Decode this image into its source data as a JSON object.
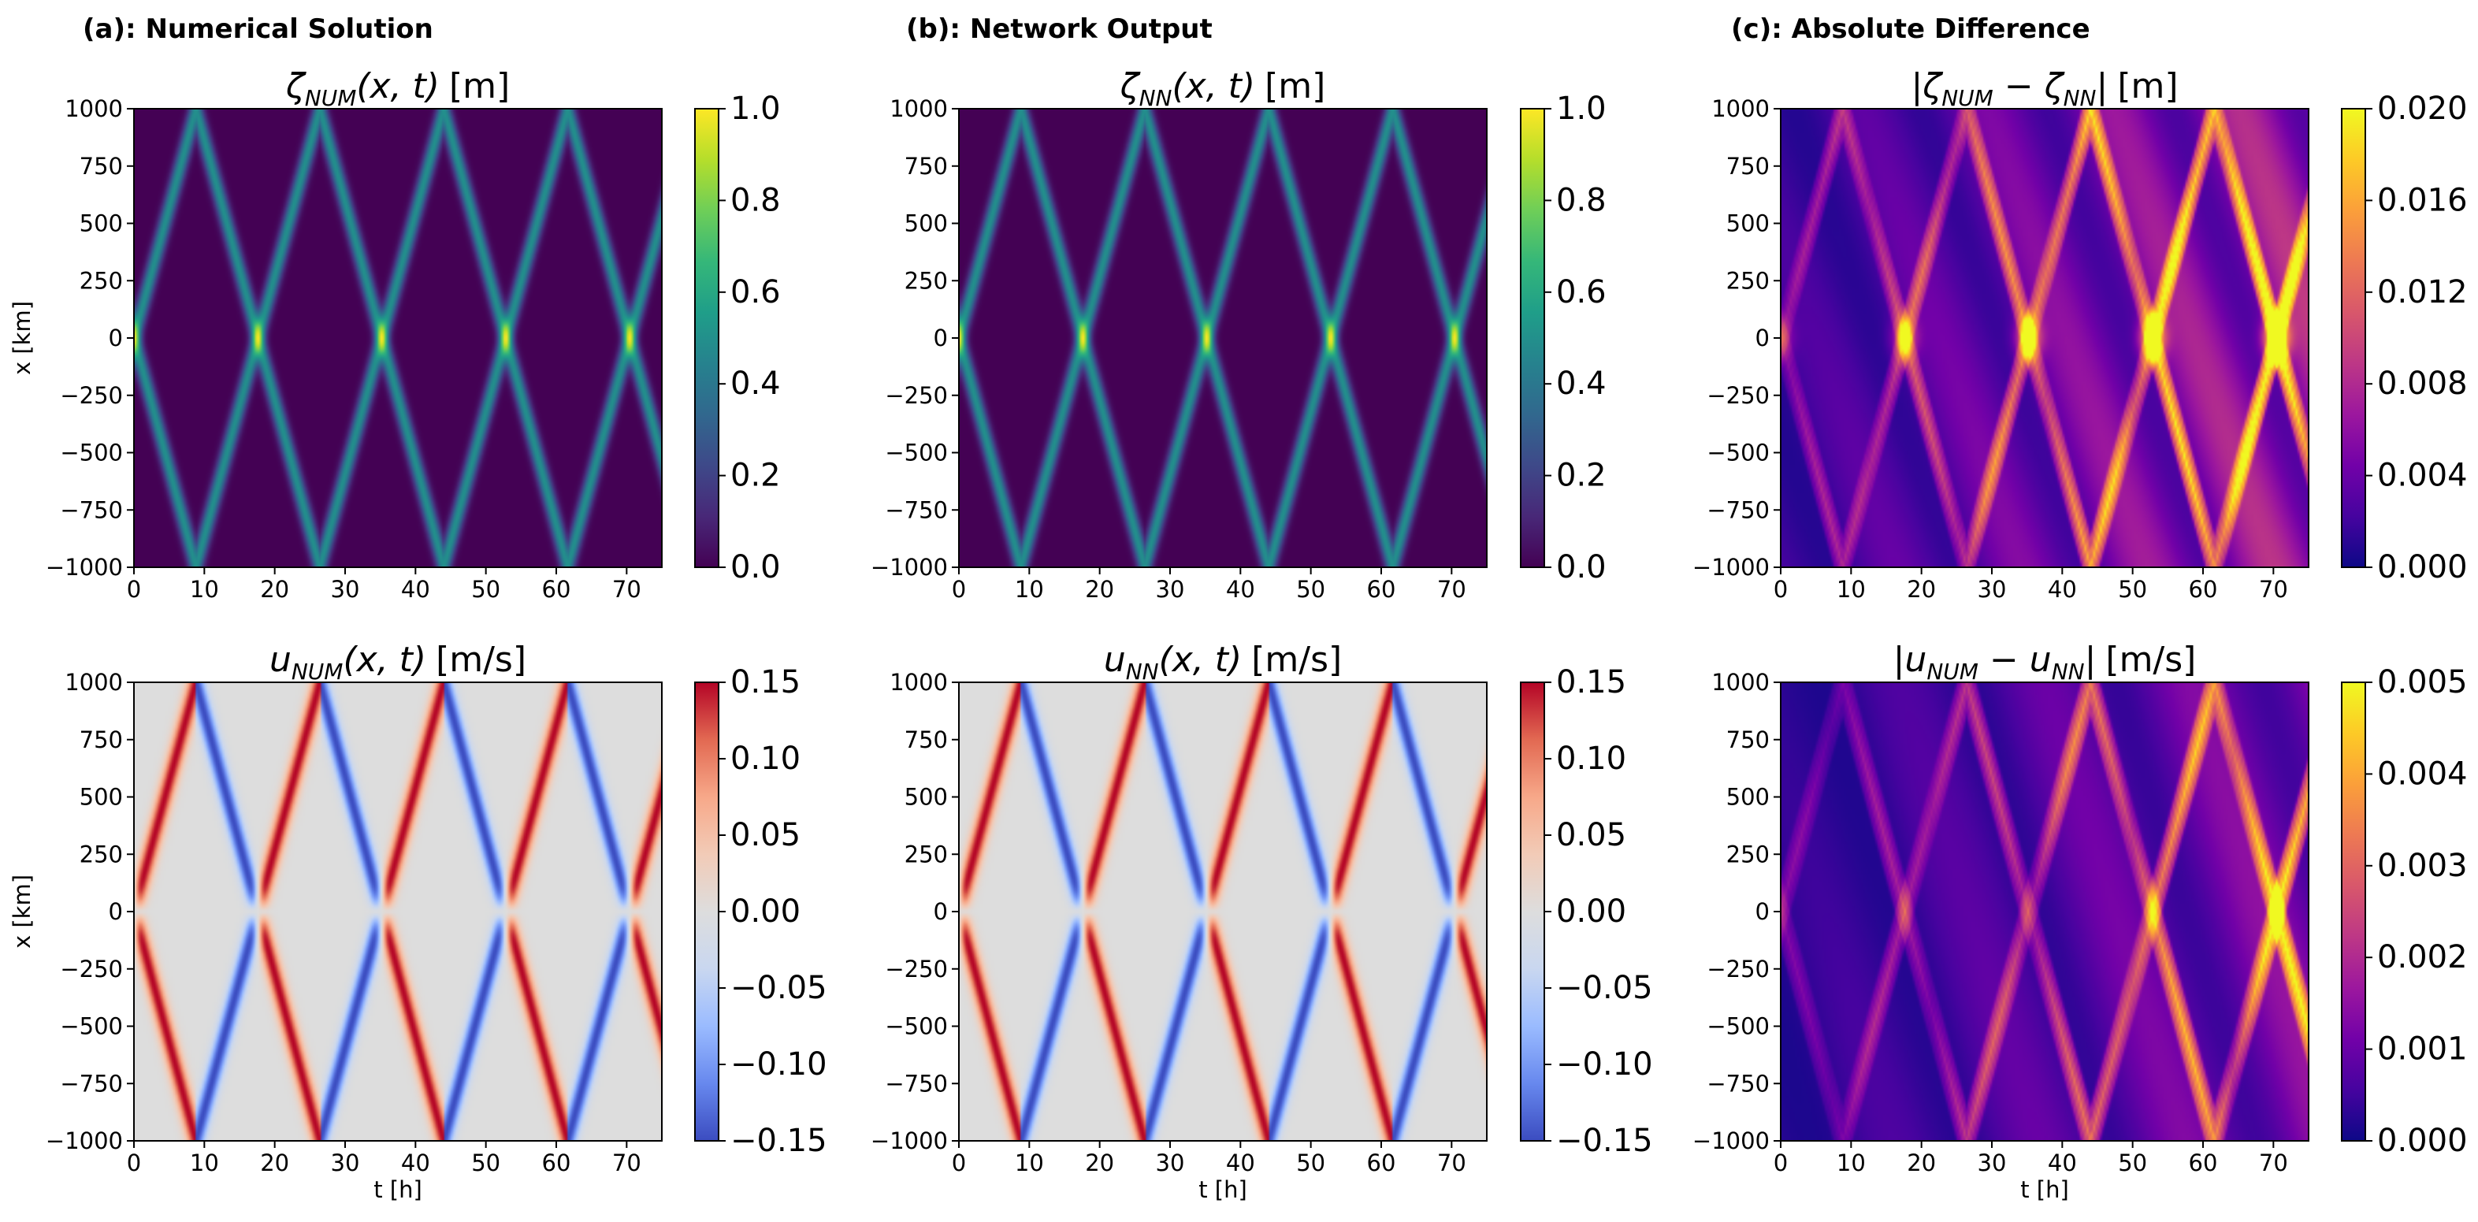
{
  "figure": {
    "column_titles": [
      "(a): Numerical Solution",
      "(b): Network Output",
      "(c): Absolute Difference"
    ]
  },
  "colors": {
    "viridis": [
      "#440154",
      "#482878",
      "#3e4989",
      "#31688e",
      "#26828e",
      "#1f9e89",
      "#35b779",
      "#6ece58",
      "#b5de2b",
      "#fde725"
    ],
    "plasma": [
      "#0d0887",
      "#46039f",
      "#7201a8",
      "#9c179e",
      "#bd3786",
      "#d8576b",
      "#ed7953",
      "#fb9f3a",
      "#fdca26",
      "#f0f921"
    ],
    "coolwarm": [
      "#3b4cc0",
      "#6788ee",
      "#9abbff",
      "#c9d7f0",
      "#dddddd",
      "#f2cbb7",
      "#f7a889",
      "#e26952",
      "#b40426"
    ]
  },
  "chart_data": [
    {
      "type": "heatmap",
      "panel": "a-top",
      "field": "zeta",
      "source": "numerical",
      "title_main": "ζ",
      "title_sub": "NUM",
      "title_args": "(x, t)",
      "title_unit": "[m]",
      "xlabel": "",
      "ylabel": "x [km]",
      "xlim": [
        0,
        75
      ],
      "ylim": [
        -1000,
        1000
      ],
      "xticks": [
        "0",
        "10",
        "20",
        "30",
        "40",
        "50",
        "60",
        "70"
      ],
      "yticks": [
        "1000",
        "750",
        "500",
        "250",
        "0",
        "−250",
        "−500",
        "−750",
        "−1000"
      ],
      "colormap": "viridis",
      "clim": [
        0,
        1
      ],
      "colorbar_ticks": [
        "1.0",
        "0.8",
        "0.6",
        "0.4",
        "0.2",
        "0.0"
      ],
      "wave_speed_km_per_h": 113.6,
      "pulse_peak_m": 0.5,
      "crossing_times_at_center_h": [
        0,
        17.6,
        35.2,
        52.8,
        70.4
      ],
      "crossing_times_at_boundary_h": [
        8.8,
        26.4,
        44.0,
        61.6
      ]
    },
    {
      "type": "heatmap",
      "panel": "b-top",
      "field": "zeta",
      "source": "network",
      "title_main": "ζ",
      "title_sub": "NN",
      "title_args": "(x, t)",
      "title_unit": "[m]",
      "xlabel": "",
      "ylabel": "",
      "xlim": [
        0,
        75
      ],
      "ylim": [
        -1000,
        1000
      ],
      "xticks": [
        "0",
        "10",
        "20",
        "30",
        "40",
        "50",
        "60",
        "70"
      ],
      "yticks": [
        "1000",
        "750",
        "500",
        "250",
        "0",
        "−250",
        "−500",
        "−750",
        "−1000"
      ],
      "colormap": "viridis",
      "clim": [
        0,
        1
      ],
      "colorbar_ticks": [
        "1.0",
        "0.8",
        "0.6",
        "0.4",
        "0.2",
        "0.0"
      ],
      "wave_speed_km_per_h": 113.6,
      "pulse_peak_m": 0.5
    },
    {
      "type": "heatmap",
      "panel": "c-top",
      "field": "zeta_diff",
      "source": "difference",
      "title_main": "|ζ",
      "title_sub": "NUM",
      "title_args": " − ζ",
      "title_sub2": "NN",
      "title_end": "|",
      "title_unit": "[m]",
      "xlabel": "",
      "ylabel": "",
      "xlim": [
        0,
        75
      ],
      "ylim": [
        -1000,
        1000
      ],
      "xticks": [
        "0",
        "10",
        "20",
        "30",
        "40",
        "50",
        "60",
        "70"
      ],
      "yticks": [
        "1000",
        "750",
        "500",
        "250",
        "0",
        "−250",
        "−500",
        "−750",
        "−1000"
      ],
      "colormap": "plasma",
      "clim": [
        0,
        0.02
      ],
      "colorbar_ticks": [
        "0.020",
        "0.016",
        "0.012",
        "0.008",
        "0.004",
        "0.000"
      ]
    },
    {
      "type": "heatmap",
      "panel": "a-bottom",
      "field": "u",
      "source": "numerical",
      "title_main": "u",
      "title_sub": "NUM",
      "title_args": "(x, t)",
      "title_unit": "[m/s]",
      "xlabel": "t [h]",
      "ylabel": "x [km]",
      "xlim": [
        0,
        75
      ],
      "ylim": [
        -1000,
        1000
      ],
      "xticks": [
        "0",
        "10",
        "20",
        "30",
        "40",
        "50",
        "60",
        "70"
      ],
      "yticks": [
        "1000",
        "750",
        "500",
        "250",
        "0",
        "−250",
        "−500",
        "−750",
        "−1000"
      ],
      "colormap": "coolwarm",
      "clim": [
        -0.15,
        0.15
      ],
      "colorbar_ticks": [
        "0.15",
        "0.10",
        "0.05",
        "0.00",
        "−0.05",
        "−0.10",
        "−0.15"
      ],
      "velocity_peak_m_per_s": 0.15
    },
    {
      "type": "heatmap",
      "panel": "b-bottom",
      "field": "u",
      "source": "network",
      "title_main": "u",
      "title_sub": "NN",
      "title_args": "(x, t)",
      "title_unit": "[m/s]",
      "xlabel": "t [h]",
      "ylabel": "",
      "xlim": [
        0,
        75
      ],
      "ylim": [
        -1000,
        1000
      ],
      "xticks": [
        "0",
        "10",
        "20",
        "30",
        "40",
        "50",
        "60",
        "70"
      ],
      "yticks": [
        "1000",
        "750",
        "500",
        "250",
        "0",
        "−250",
        "−500",
        "−750",
        "−1000"
      ],
      "colormap": "coolwarm",
      "clim": [
        -0.15,
        0.15
      ],
      "colorbar_ticks": [
        "0.15",
        "0.10",
        "0.05",
        "0.00",
        "−0.05",
        "−0.10",
        "−0.15"
      ],
      "velocity_peak_m_per_s": 0.15
    },
    {
      "type": "heatmap",
      "panel": "c-bottom",
      "field": "u_diff",
      "source": "difference",
      "title_main": "|u",
      "title_sub": "NUM",
      "title_args": " − u",
      "title_sub2": "NN",
      "title_end": "|",
      "title_unit": "[m/s]",
      "xlabel": "t [h]",
      "ylabel": "",
      "xlim": [
        0,
        75
      ],
      "ylim": [
        -1000,
        1000
      ],
      "xticks": [
        "0",
        "10",
        "20",
        "30",
        "40",
        "50",
        "60",
        "70"
      ],
      "yticks": [
        "1000",
        "750",
        "500",
        "250",
        "0",
        "−250",
        "−500",
        "−750",
        "−1000"
      ],
      "colormap": "plasma",
      "clim": [
        0,
        0.005
      ],
      "colorbar_ticks": [
        "0.005",
        "0.004",
        "0.003",
        "0.002",
        "0.001",
        "0.000"
      ]
    }
  ]
}
